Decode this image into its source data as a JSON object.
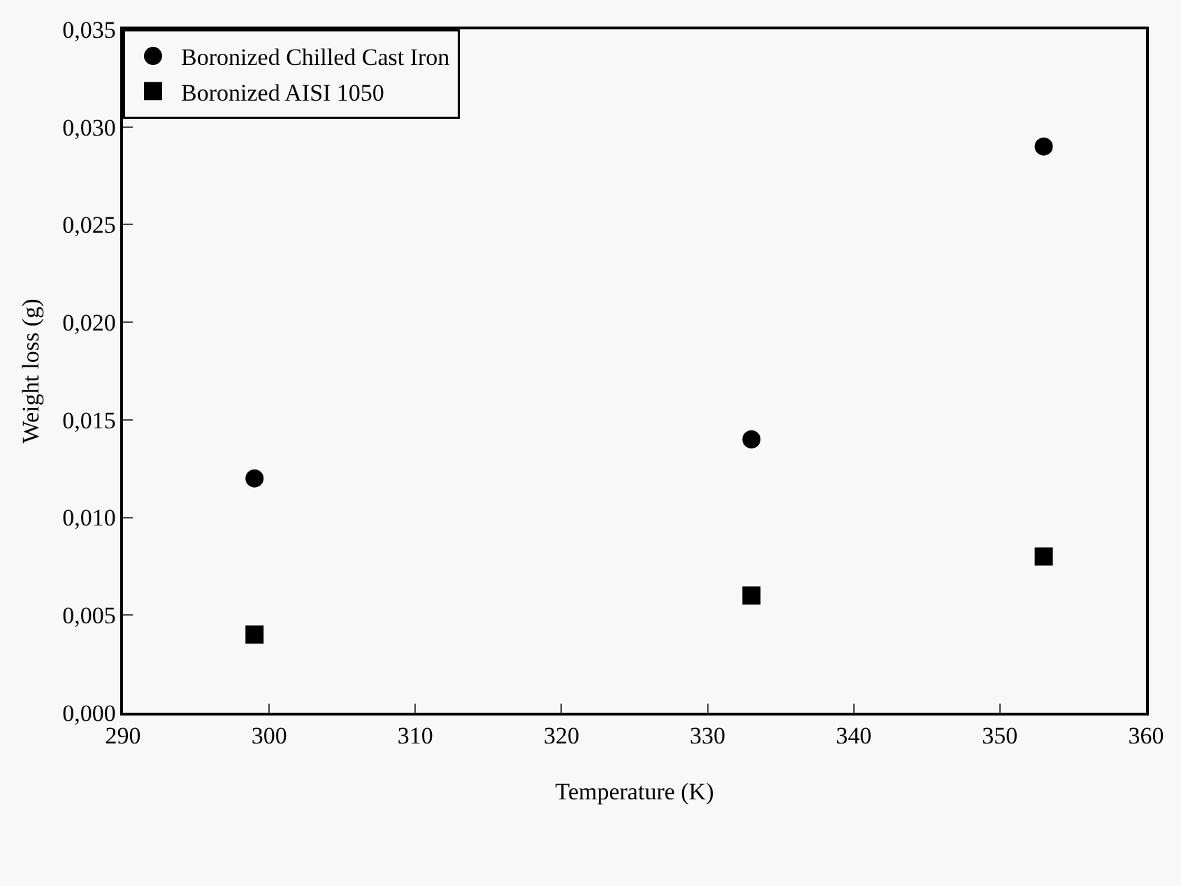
{
  "chart_data": {
    "type": "scatter",
    "xlabel": "Temperature (K)",
    "ylabel": "Weight loss (g)",
    "x": [
      299,
      333,
      353
    ],
    "series": [
      {
        "name": "Boronized Chilled Cast Iron",
        "color": "#000000",
        "marker": "circle",
        "values": [
          0.012,
          0.014,
          0.029
        ]
      },
      {
        "name": "Boronized AISI 1050",
        "color": "#000000",
        "marker": "square",
        "values": [
          0.004,
          0.006,
          0.008
        ]
      }
    ],
    "xlim": [
      290,
      360
    ],
    "xticks": [
      290,
      300,
      310,
      320,
      330,
      340,
      350,
      360
    ],
    "ylim": [
      0,
      0.035
    ],
    "yticks": [
      {
        "value": 0,
        "label": "0,000"
      },
      {
        "value": 0.005,
        "label": "0,005"
      },
      {
        "value": 0.01,
        "label": "0,010"
      },
      {
        "value": 0.015,
        "label": "0,015"
      },
      {
        "value": 0.02,
        "label": "0,020"
      },
      {
        "value": 0.025,
        "label": "0,025"
      },
      {
        "value": 0.03,
        "label": "0,030"
      },
      {
        "value": 0.035,
        "label": "0,035"
      }
    ],
    "grid": false,
    "legend": "top left"
  }
}
